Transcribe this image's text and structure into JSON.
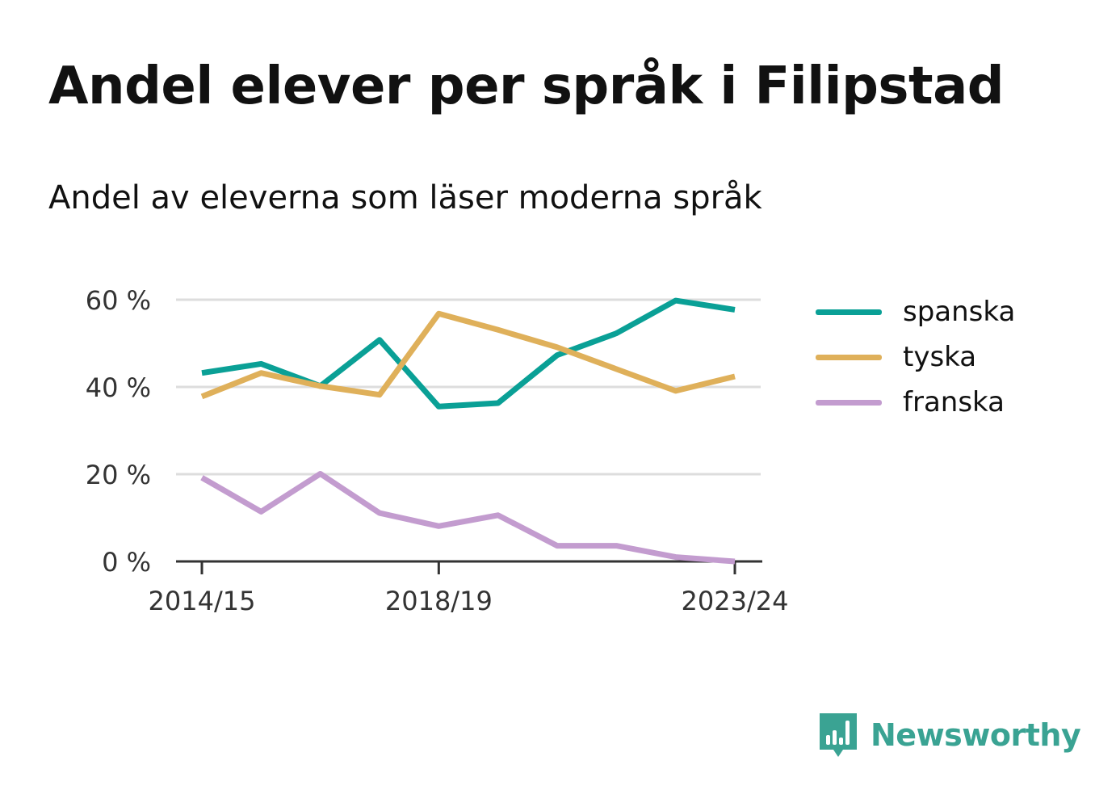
{
  "title": "Andel elever per språk i Filipstad",
  "subtitle": "Andel av eleverna som läser moderna språk",
  "brand": {
    "name": "Newsworthy",
    "color": "#3aa393",
    "icon": "bar-chart-speech-bubble-icon"
  },
  "chart_data": {
    "type": "line",
    "x": [
      "2014/15",
      "2015/16",
      "2016/17",
      "2017/18",
      "2018/19",
      "2019/20",
      "2020/21",
      "2021/22",
      "2022/23",
      "2023/24"
    ],
    "x_tick_labels": [
      "2014/15",
      "2018/19",
      "2023/24"
    ],
    "y_ticks": [
      0,
      20,
      40,
      60
    ],
    "y_tick_labels": [
      "0 %",
      "20 %",
      "40 %",
      "60 %"
    ],
    "ylim": [
      0,
      62
    ],
    "grid": true,
    "legend_position": "right",
    "series": [
      {
        "name": "spanska",
        "color": "#0aa096",
        "values": [
          43.2,
          45.3,
          40.2,
          50.8,
          35.5,
          36.3,
          47.3,
          52.3,
          59.8,
          57.7
        ]
      },
      {
        "name": "tyska",
        "color": "#dfb05a",
        "values": [
          37.8,
          43.2,
          40.2,
          38.2,
          56.8,
          53.1,
          49.1,
          44.1,
          39.1,
          42.4
        ]
      },
      {
        "name": "franska",
        "color": "#c39ccf",
        "values": [
          19.2,
          11.4,
          20.1,
          11.1,
          8.1,
          10.6,
          3.6,
          3.6,
          1.0,
          0.0
        ]
      }
    ]
  }
}
